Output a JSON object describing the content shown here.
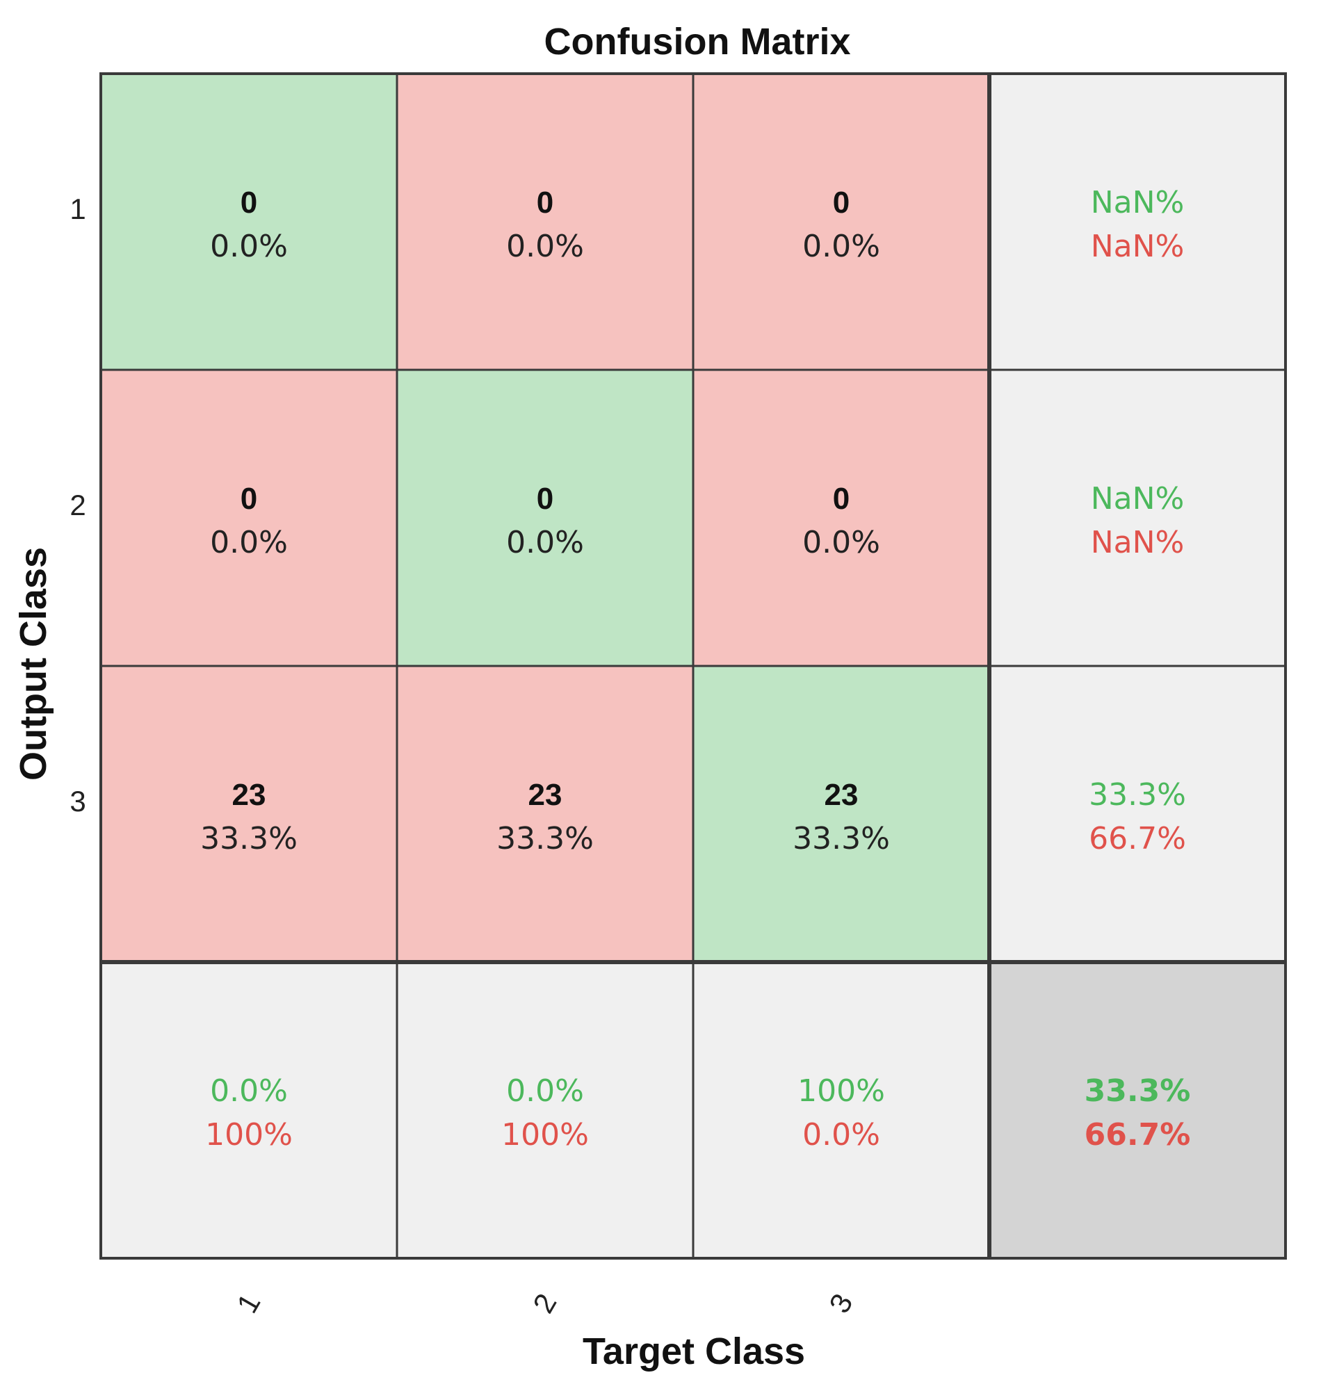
{
  "chart_data": {
    "type": "table",
    "title": "Confusion Matrix",
    "xlabel": "Target Class",
    "ylabel": "Output Class",
    "x_ticks": [
      "1",
      "2",
      "3"
    ],
    "y_ticks": [
      "1",
      "2",
      "3"
    ],
    "cells": [
      [
        {
          "count": "0",
          "percent": "0.0%"
        },
        {
          "count": "0",
          "percent": "0.0%"
        },
        {
          "count": "0",
          "percent": "0.0%"
        }
      ],
      [
        {
          "count": "0",
          "percent": "0.0%"
        },
        {
          "count": "0",
          "percent": "0.0%"
        },
        {
          "count": "0",
          "percent": "0.0%"
        }
      ],
      [
        {
          "count": "23",
          "percent": "33.3%"
        },
        {
          "count": "23",
          "percent": "33.3%"
        },
        {
          "count": "23",
          "percent": "33.3%"
        }
      ]
    ],
    "row_summary": [
      {
        "correct": "NaN%",
        "incorrect": "NaN%"
      },
      {
        "correct": "NaN%",
        "incorrect": "NaN%"
      },
      {
        "correct": "33.3%",
        "incorrect": "66.7%"
      }
    ],
    "column_summary": [
      {
        "correct": "0.0%",
        "incorrect": "100%"
      },
      {
        "correct": "0.0%",
        "incorrect": "100%"
      },
      {
        "correct": "100%",
        "incorrect": "0.0%"
      }
    ],
    "overall": {
      "correct": "33.3%",
      "incorrect": "66.7%"
    }
  },
  "colors": {
    "diagonal": "#bfe5c5",
    "off_diagonal": "#f6c2bf",
    "summary": "#f0f0f0",
    "overall": "#d4d4d4",
    "correct_text": "#4cb85c",
    "incorrect_text": "#e0524b"
  }
}
